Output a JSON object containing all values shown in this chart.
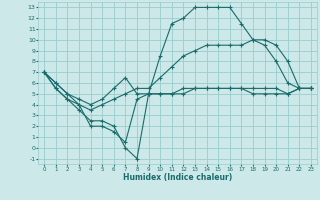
{
  "bg_color": "#cce8e8",
  "grid_color": "#99cccc",
  "line_color": "#1a6b6b",
  "xlabel": "Humidex (Indice chaleur)",
  "xlim": [
    -0.5,
    23.5
  ],
  "ylim": [
    -1.5,
    13.5
  ],
  "xticks": [
    0,
    1,
    2,
    3,
    4,
    5,
    6,
    7,
    8,
    9,
    10,
    11,
    12,
    13,
    14,
    15,
    16,
    17,
    18,
    19,
    20,
    21,
    22,
    23
  ],
  "yticks": [
    -1,
    0,
    1,
    2,
    3,
    4,
    5,
    6,
    7,
    8,
    9,
    10,
    11,
    12,
    13
  ],
  "line1_x": [
    0,
    1,
    2,
    3,
    4,
    5,
    6,
    7,
    8,
    9,
    10,
    11,
    12,
    13,
    14,
    15,
    16,
    17,
    18,
    19,
    20,
    21,
    22,
    23
  ],
  "line1_y": [
    7,
    6,
    5,
    4.5,
    4,
    4.5,
    5.5,
    6.5,
    5,
    5,
    8.5,
    11.5,
    12,
    13,
    13,
    13,
    13,
    11.5,
    10,
    9.5,
    8,
    6,
    5.5,
    5.5
  ],
  "line2_x": [
    0,
    1,
    2,
    3,
    4,
    5,
    6,
    7,
    8,
    9,
    10,
    11,
    12,
    13,
    14,
    15,
    16,
    17,
    18,
    19,
    20,
    21,
    22,
    23
  ],
  "line2_y": [
    7,
    6,
    5,
    4,
    3.5,
    4,
    4.5,
    5,
    5.5,
    5.5,
    6.5,
    7.5,
    8.5,
    9,
    9.5,
    9.5,
    9.5,
    9.5,
    10,
    10,
    9.5,
    8,
    5.5,
    5.5
  ],
  "line3_x": [
    0,
    1,
    2,
    3,
    4,
    5,
    6,
    7,
    8,
    9,
    10,
    11,
    12,
    13,
    14,
    15,
    16,
    17,
    18,
    19,
    20,
    21,
    22,
    23
  ],
  "line3_y": [
    7,
    5.5,
    4.5,
    3.5,
    2.5,
    2.5,
    2,
    0,
    -1,
    5,
    5,
    5,
    5,
    5.5,
    5.5,
    5.5,
    5.5,
    5.5,
    5.5,
    5.5,
    5.5,
    5,
    5.5,
    5.5
  ],
  "line4_x": [
    0,
    1,
    2,
    3,
    4,
    5,
    6,
    7,
    8,
    9,
    10,
    11,
    12,
    13,
    14,
    15,
    16,
    17,
    18,
    19,
    20,
    21,
    22,
    23
  ],
  "line4_y": [
    7,
    5.5,
    4.5,
    4,
    2,
    2,
    1.5,
    0.5,
    4.5,
    5,
    5,
    5,
    5.5,
    5.5,
    5.5,
    5.5,
    5.5,
    5.5,
    5,
    5,
    5,
    5,
    5.5,
    5.5
  ]
}
